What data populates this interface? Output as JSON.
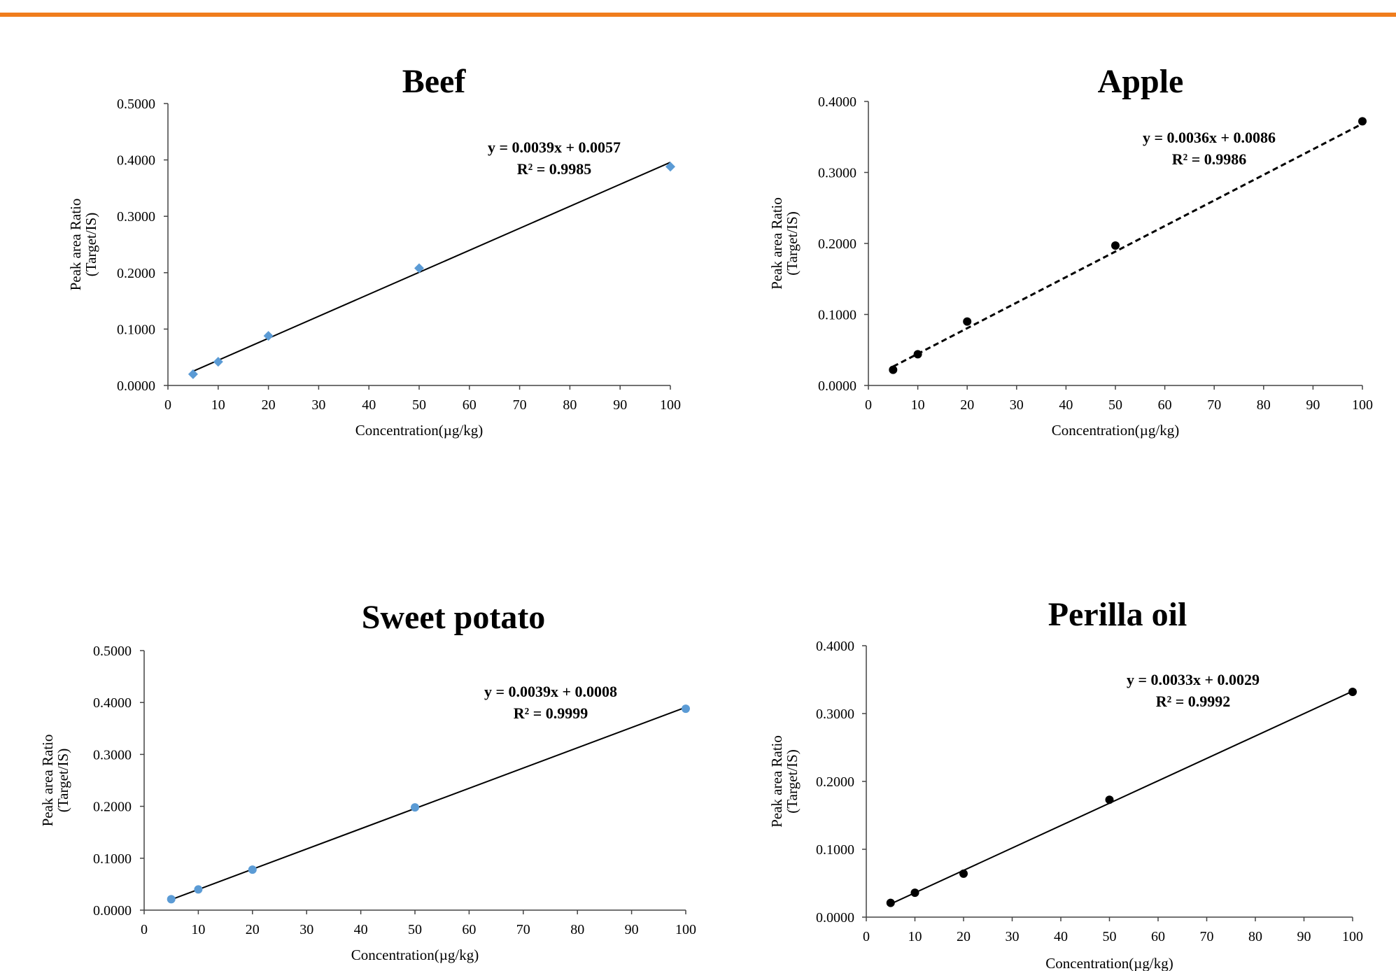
{
  "accent_color": "#f07d1c",
  "chart_data": [
    {
      "type": "scatter",
      "title": "Beef",
      "xlabel": "Concentration(µg/kg)",
      "ylabel": [
        "Peak area Ratio",
        "(Target/IS)"
      ],
      "xlim": [
        0,
        100
      ],
      "ylim": [
        0,
        0.5
      ],
      "xticks": [
        "0",
        "10",
        "20",
        "30",
        "40",
        "50",
        "60",
        "70",
        "80",
        "90",
        "100"
      ],
      "yticks": [
        "0.0000",
        "0.1000",
        "0.2000",
        "0.3000",
        "0.4000",
        "0.5000"
      ],
      "series": [
        {
          "x": [
            5,
            10,
            20,
            50,
            100
          ],
          "y": [
            0.02,
            0.042,
            0.088,
            0.208,
            0.388
          ]
        }
      ],
      "marker": "diamond",
      "marker_color": "#5b9bd5",
      "trendline": {
        "slope": 0.0039,
        "intercept": 0.0057,
        "style": "solid"
      },
      "equation": "y = 0.0039x + 0.0057",
      "r2": "R² = 0.9985",
      "grid": false
    },
    {
      "type": "scatter",
      "title": "Apple",
      "xlabel": "Concentration(µg/kg)",
      "ylabel": [
        "Peak area Ratio",
        "(Target/IS)"
      ],
      "xlim": [
        0,
        100
      ],
      "ylim": [
        0,
        0.4
      ],
      "xticks": [
        "0",
        "10",
        "20",
        "30",
        "40",
        "50",
        "60",
        "70",
        "80",
        "90",
        "100"
      ],
      "yticks": [
        "0.0000",
        "0.1000",
        "0.2000",
        "0.3000",
        "0.4000"
      ],
      "series": [
        {
          "x": [
            5,
            10,
            20,
            50,
            100
          ],
          "y": [
            0.022,
            0.044,
            0.09,
            0.197,
            0.372
          ]
        }
      ],
      "marker": "circle",
      "marker_color": "#000000",
      "trendline": {
        "slope": 0.0036,
        "intercept": 0.0086,
        "style": "dashed"
      },
      "equation": "y = 0.0036x + 0.0086",
      "r2": "R² = 0.9986",
      "grid": false
    },
    {
      "type": "scatter",
      "title": "Sweet potato",
      "xlabel": "Concentration(µg/kg)",
      "ylabel": [
        "Peak area Ratio",
        "(Target/IS)"
      ],
      "xlim": [
        0,
        100
      ],
      "ylim": [
        0,
        0.5
      ],
      "xticks": [
        "0",
        "10",
        "20",
        "30",
        "40",
        "50",
        "60",
        "70",
        "80",
        "90",
        "100"
      ],
      "yticks": [
        "0.0000",
        "0.1000",
        "0.2000",
        "0.3000",
        "0.4000",
        "0.5000"
      ],
      "series": [
        {
          "x": [
            5,
            10,
            20,
            50,
            100
          ],
          "y": [
            0.021,
            0.04,
            0.078,
            0.198,
            0.388
          ]
        }
      ],
      "marker": "circle",
      "marker_color": "#5b9bd5",
      "trendline": {
        "slope": 0.0039,
        "intercept": 0.0008,
        "style": "solid"
      },
      "equation": "y = 0.0039x + 0.0008",
      "r2": "R² = 0.9999",
      "grid": false
    },
    {
      "type": "scatter",
      "title": "Perilla oil",
      "xlabel": "Concentration(µg/kg)",
      "ylabel": [
        "Peak area Ratio",
        "(Target/IS)"
      ],
      "xlim": [
        0,
        100
      ],
      "ylim": [
        0,
        0.4
      ],
      "xticks": [
        "0",
        "10",
        "20",
        "30",
        "40",
        "50",
        "60",
        "70",
        "80",
        "90",
        "100"
      ],
      "yticks": [
        "0.0000",
        "0.1000",
        "0.2000",
        "0.3000",
        "0.4000"
      ],
      "series": [
        {
          "x": [
            5,
            10,
            20,
            50,
            100
          ],
          "y": [
            0.021,
            0.036,
            0.064,
            0.173,
            0.332
          ]
        }
      ],
      "marker": "circle",
      "marker_color": "#000000",
      "trendline": {
        "slope": 0.0033,
        "intercept": 0.0029,
        "style": "solid"
      },
      "equation": "y = 0.0033x + 0.0029",
      "r2": "R² = 0.9992",
      "grid": false
    }
  ]
}
